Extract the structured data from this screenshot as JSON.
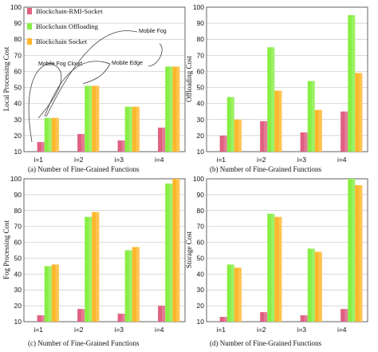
{
  "colors": {
    "rmi": "#e06080",
    "offloading": "#88ee44",
    "socket": "#ffb72b"
  },
  "chart_data": [
    {
      "type": "bar",
      "caption": "(a) Number of Fine-Grained Functions",
      "ylabel": "Local Processing Cost",
      "ylim": [
        10,
        100
      ],
      "yticks": [
        10,
        20,
        30,
        40,
        50,
        60,
        70,
        80,
        90,
        100
      ],
      "categories": [
        "i=1",
        "i=2",
        "i=3",
        "i=4"
      ],
      "legend": [
        "Blockchain-RMI-Socket",
        "Blockchain Offloading",
        "Blockchain Socket"
      ],
      "series": [
        {
          "name": "Blockchain-RMI-Socket",
          "values": [
            16,
            21,
            17,
            25
          ]
        },
        {
          "name": "Blockchain Offloading",
          "values": [
            31,
            51,
            38,
            63
          ]
        },
        {
          "name": "Blockchain Socket",
          "values": [
            31,
            51,
            38,
            63
          ]
        }
      ],
      "annotations": [
        "Mobile Fog Cloud",
        "Mobile Edge",
        "Mobile Fog"
      ]
    },
    {
      "type": "bar",
      "caption": "(b)  Number of Fine-Grained Functions",
      "ylabel": "Offloading Cost",
      "ylim": [
        10,
        100
      ],
      "yticks": [
        10,
        20,
        30,
        40,
        50,
        60,
        70,
        80,
        90,
        100
      ],
      "categories": [
        "i=1",
        "i=2",
        "i=3",
        "i=4"
      ],
      "series": [
        {
          "name": "Blockchain-RMI-Socket",
          "values": [
            20,
            29,
            22,
            35
          ]
        },
        {
          "name": "Blockchain Offloading",
          "values": [
            44,
            75,
            54,
            95
          ]
        },
        {
          "name": "Blockchain Socket",
          "values": [
            30,
            48,
            36,
            59
          ]
        }
      ]
    },
    {
      "type": "bar",
      "caption": "(c)  Number of Fine-Grained Functions",
      "ylabel": "Fog Processing Cost",
      "ylim": [
        10,
        100
      ],
      "yticks": [
        10,
        20,
        30,
        40,
        50,
        60,
        70,
        80,
        90,
        100
      ],
      "categories": [
        "i=1",
        "i=2",
        "i=3",
        "i=4"
      ],
      "series": [
        {
          "name": "Blockchain-RMI-Socket",
          "values": [
            14,
            18,
            15,
            20
          ]
        },
        {
          "name": "Blockchain Offloading",
          "values": [
            45,
            76,
            55,
            97
          ]
        },
        {
          "name": "Blockchain Socket",
          "values": [
            46,
            79,
            57,
            100
          ]
        }
      ]
    },
    {
      "type": "bar",
      "caption": "(d)  Number of Fine-Grained Functions",
      "ylabel": "Storage Cost",
      "ylim": [
        10,
        100
      ],
      "yticks": [
        10,
        20,
        30,
        40,
        50,
        60,
        70,
        80,
        90,
        100
      ],
      "categories": [
        "i=1",
        "i=2",
        "i=3",
        "i=4"
      ],
      "series": [
        {
          "name": "Blockchain-RMI-Socket",
          "values": [
            13,
            16,
            14,
            18
          ]
        },
        {
          "name": "Blockchain Offloading",
          "values": [
            46,
            78,
            56,
            100
          ]
        },
        {
          "name": "Blockchain Socket",
          "values": [
            44,
            76,
            54,
            96
          ]
        }
      ]
    }
  ]
}
